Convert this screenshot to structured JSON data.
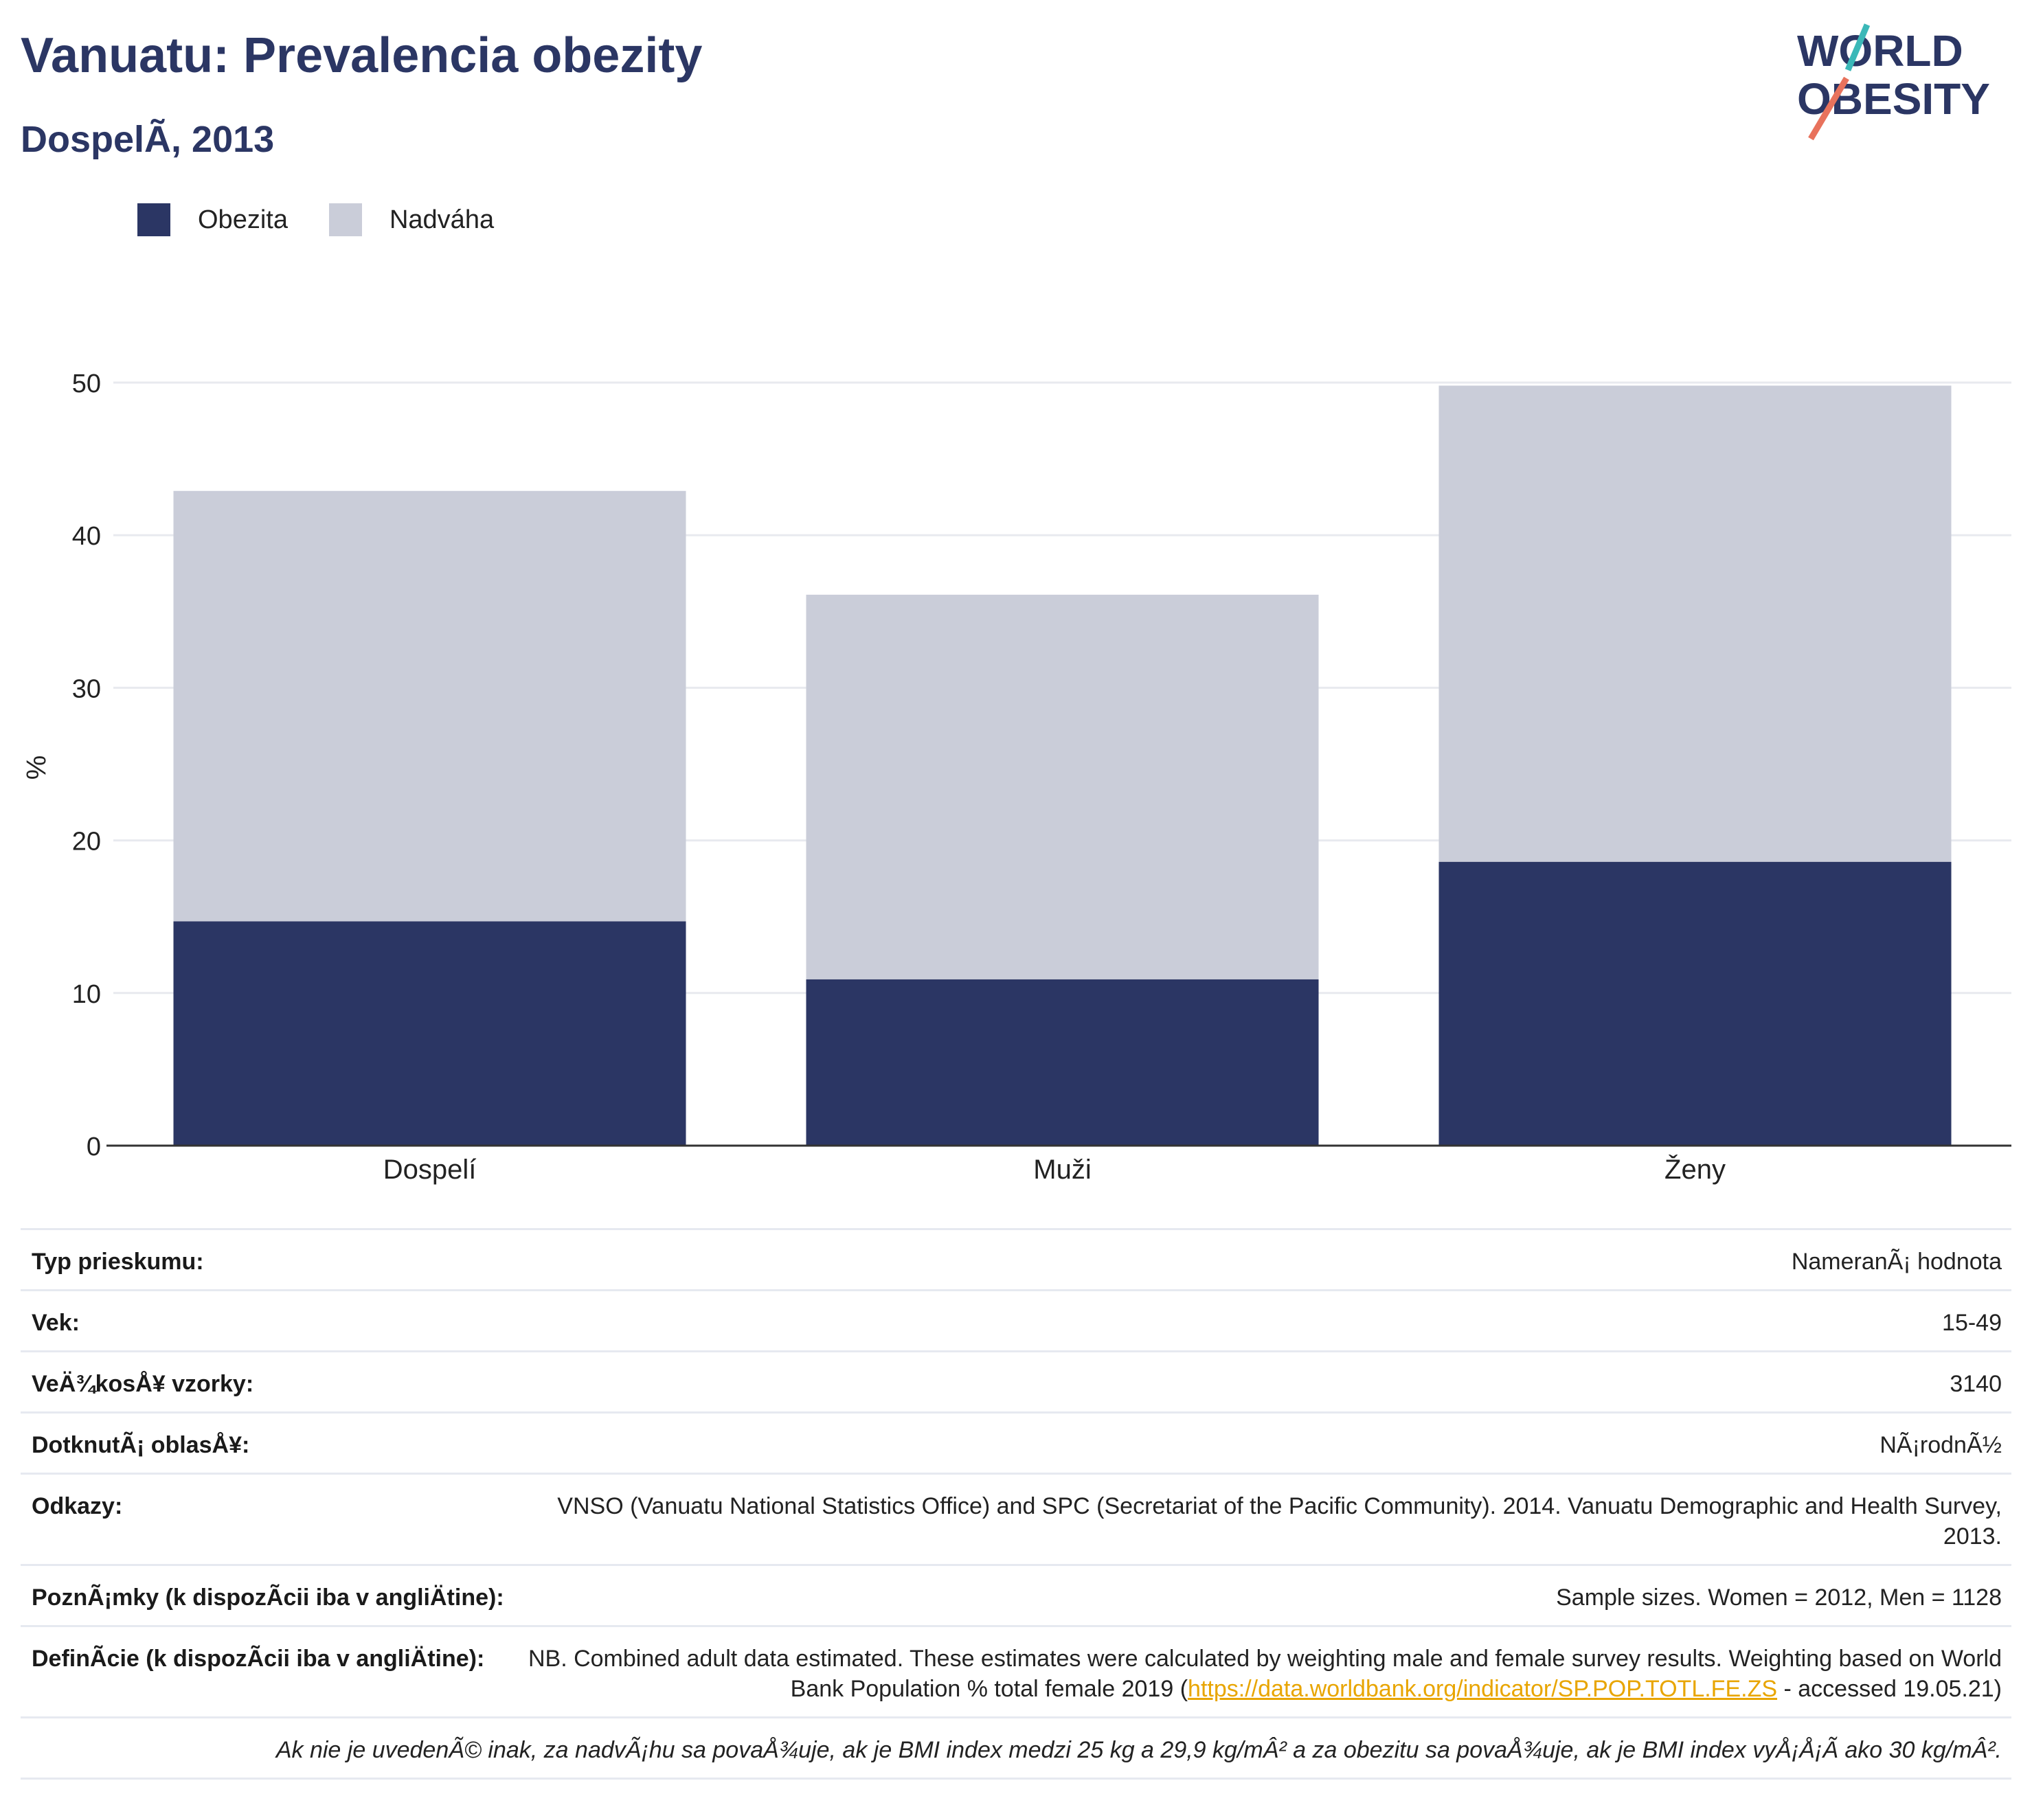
{
  "title": "Vanuatu: Prevalencia obezity",
  "subtitle": "DospelÃ, 2013",
  "logo": {
    "line1": "WORLD",
    "line2": "OBESITY"
  },
  "colors": {
    "obezita": "#2b3664",
    "nadvaha": "#cacdd9",
    "title": "#2b3664",
    "grid": "#e8eaef",
    "axis": "#333333",
    "accent_teal": "#3bb8b8",
    "accent_coral": "#e8725c"
  },
  "legend": [
    {
      "label": "Obezita",
      "color": "#2b3664"
    },
    {
      "label": "Nadváha",
      "color": "#cacdd9"
    }
  ],
  "chart_data": {
    "type": "bar",
    "stacked": true,
    "categories": [
      "Dospelí",
      "Muži",
      "Ženy"
    ],
    "series": [
      {
        "name": "Obezita",
        "values": [
          14.7,
          10.9,
          18.6
        ]
      },
      {
        "name": "Nadváha",
        "values": [
          28.2,
          25.2,
          31.2
        ]
      }
    ],
    "ylabel": "%",
    "ylim": [
      0,
      50
    ],
    "yticks": [
      0,
      10,
      20,
      30,
      40,
      50
    ],
    "grid": true,
    "legend_position": "top-left"
  },
  "info": {
    "rows": [
      {
        "key": "Typ prieskumu:",
        "value": "NameranÃ¡ hodnota"
      },
      {
        "key": "Vek:",
        "value": "15-49"
      },
      {
        "key": "VeÄ¾kosÅ¥ vzorky:",
        "value": "3140"
      },
      {
        "key": "DotknutÃ¡ oblasÅ¥:",
        "value": "NÃ¡rodnÃ½"
      },
      {
        "key": "Odkazy:",
        "value": "VNSO (Vanuatu National Statistics Office) and SPC (Secretariat of the Pacific Community). 2014. Vanuatu Demographic and Health Survey, 2013."
      },
      {
        "key": "PoznÃ¡mky (k dispozÃcii iba v angliÄ⁠tine):",
        "value": "Sample sizes. Women = 2012, Men = 1128"
      }
    ],
    "definition": {
      "key": "DefinÃcie (k dispozÃcii iba v angliÄ⁠tine):",
      "text_before": "NB. Combined adult data estimated. These estimates were calculated by weighting male and female survey results. Weighting based on World Bank Population % total female 2019 (",
      "link": "https://data.worldbank.org/indicator/SP.POP.TOTL.FE.ZS",
      "text_after": " - accessed 19.05.21)"
    },
    "footnote": "Ak nie je uvedenÃ© inak, za nadvÃ¡hu sa povaÅ¾uje, ak je BMI index medzi 25 kg a 29,9 kg/mÂ² a za obezitu sa povaÅ¾uje, ak je BMI index vyÅ¡Å¡Ã ako 30 kg/mÂ²."
  }
}
